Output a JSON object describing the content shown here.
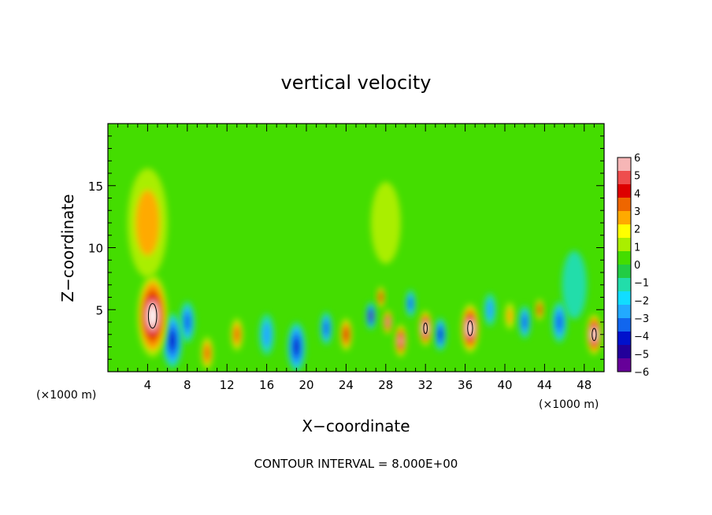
{
  "chart_data": {
    "type": "heatmap",
    "title": "vertical velocity",
    "xlabel": "X−coordinate",
    "ylabel": "Z−coordinate",
    "x_unit": "(×1000 m)",
    "y_unit": "(×1000 m)",
    "footer": "CONTOUR INTERVAL = 8.000E+00",
    "xlim": [
      0,
      50
    ],
    "ylim": [
      0,
      20
    ],
    "x_ticks": [
      4,
      8,
      12,
      16,
      20,
      24,
      28,
      32,
      36,
      40,
      44,
      48
    ],
    "y_ticks": [
      5,
      10,
      15
    ],
    "colorbar": {
      "ticks": [
        "6",
        "5",
        "4",
        "3",
        "2",
        "1",
        "0",
        "−1",
        "−2",
        "−3",
        "−4",
        "−5",
        "−6"
      ],
      "range": [
        -6,
        6
      ],
      "colors": [
        "#f6b6b6",
        "#ee4d4d",
        "#dd0000",
        "#ee6600",
        "#ffaa00",
        "#ffff00",
        "#aaee00",
        "#44dd00",
        "#22cc44",
        "#22ddaa",
        "#11ddff",
        "#22aaff",
        "#1166ee",
        "#0011cc",
        "#22009a",
        "#660099"
      ]
    },
    "features": [
      {
        "x": 4.5,
        "z": 4.5,
        "w": 3.0,
        "value": 6
      },
      {
        "x": 6.5,
        "z": 2.5,
        "w": 2.0,
        "value": -4
      },
      {
        "x": 8.0,
        "z": 4.0,
        "w": 1.5,
        "value": -3
      },
      {
        "x": 10.0,
        "z": 1.5,
        "w": 1.2,
        "value": 3
      },
      {
        "x": 13.0,
        "z": 3.0,
        "w": 1.2,
        "value": 3
      },
      {
        "x": 16.0,
        "z": 3.0,
        "w": 1.5,
        "value": -2
      },
      {
        "x": 19.0,
        "z": 2.0,
        "w": 1.8,
        "value": -4
      },
      {
        "x": 22.0,
        "z": 3.5,
        "w": 1.2,
        "value": -3
      },
      {
        "x": 24.0,
        "z": 3.0,
        "w": 1.2,
        "value": 4
      },
      {
        "x": 26.5,
        "z": 4.5,
        "w": 1.0,
        "value": -5
      },
      {
        "x": 27.5,
        "z": 6.0,
        "w": 0.8,
        "value": 4
      },
      {
        "x": 28.2,
        "z": 4.0,
        "w": 0.9,
        "value": 5
      },
      {
        "x": 29.5,
        "z": 2.5,
        "w": 1.2,
        "value": 5
      },
      {
        "x": 30.5,
        "z": 5.5,
        "w": 1.0,
        "value": -3
      },
      {
        "x": 32.0,
        "z": 3.5,
        "w": 1.3,
        "value": 6
      },
      {
        "x": 33.5,
        "z": 3.0,
        "w": 1.2,
        "value": -4
      },
      {
        "x": 36.5,
        "z": 3.5,
        "w": 1.8,
        "value": 6
      },
      {
        "x": 38.5,
        "z": 5.0,
        "w": 1.2,
        "value": -2
      },
      {
        "x": 40.5,
        "z": 4.5,
        "w": 1.0,
        "value": 2
      },
      {
        "x": 42.0,
        "z": 4.0,
        "w": 1.2,
        "value": -3
      },
      {
        "x": 43.5,
        "z": 5.0,
        "w": 0.8,
        "value": 4
      },
      {
        "x": 45.5,
        "z": 4.0,
        "w": 1.5,
        "value": -3
      },
      {
        "x": 49.0,
        "z": 3.0,
        "w": 1.5,
        "value": 6
      },
      {
        "x": 28.0,
        "z": 12.0,
        "w": 3.0,
        "value": 0.8
      },
      {
        "x": 4.0,
        "z": 12.0,
        "w": 4.0,
        "value": 1.5
      },
      {
        "x": 47.0,
        "z": 7.0,
        "w": 2.5,
        "value": -1
      }
    ]
  }
}
